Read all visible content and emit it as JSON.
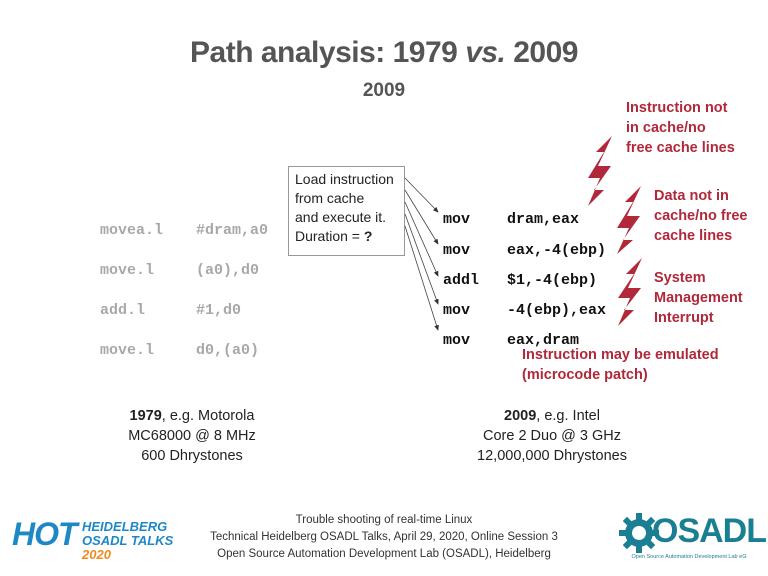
{
  "slide": {
    "title_main": "Path analysis: 1979 ",
    "title_vs": "vs.",
    "title_end": " 2009",
    "subtitle": "2009"
  },
  "code_1979": [
    {
      "op": "movea.l",
      "args": "#dram,a0"
    },
    {
      "op": "move.l",
      "args": "(a0),d0"
    },
    {
      "op": "add.l",
      "args": "#1,d0"
    },
    {
      "op": "move.l",
      "args": "d0,(a0)"
    }
  ],
  "code_2009": [
    {
      "op": "mov",
      "args": "dram,eax"
    },
    {
      "op": "mov",
      "args": "eax,-4(ebp)"
    },
    {
      "op": "addl",
      "args": "$1,-4(ebp)"
    },
    {
      "op": "mov",
      "args": "-4(ebp),eax"
    },
    {
      "op": "mov",
      "args": "eax,dram"
    }
  ],
  "callout": {
    "line1": "Load instruction",
    "line2": "from cache",
    "line3": "and execute it.",
    "line4_prefix": "Duration = ",
    "line4_value": "?"
  },
  "events": {
    "e1": [
      "Instruction not",
      "in cache/no",
      "free cache lines"
    ],
    "e2": [
      "Data not in",
      "cache/no free",
      "cache lines"
    ],
    "e3": [
      "System",
      "Management",
      "Interrupt"
    ],
    "e4": [
      "Instruction may be emulated",
      "(microcode patch)"
    ]
  },
  "desc_1979": {
    "year": "1979",
    "rest": ", e.g. Motorola",
    "line2": "MC68000 @ 8 MHz",
    "line3": "600 Dhrystones"
  },
  "desc_2009": {
    "year": "2009",
    "rest": ", e.g. Intel",
    "line2": "Core 2 Duo @ 3 GHz",
    "line3": "12,000,000 Dhrystones"
  },
  "footer": {
    "line1": "Trouble shooting of real-time Linux",
    "line2": "Technical Heidelberg OSADL Talks, April 29, 2020, Online Session 3",
    "line3": "Open Source Automation Development Lab (OSADL), Heidelberg"
  },
  "logos": {
    "hot_big": "HOT",
    "hot_l1": "HEIDELBERG",
    "hot_l2a": "OSADL TALKS",
    "hot_l2b": "2020",
    "osadl": "OSADL",
    "osadl_sub": "Open Source Automation Development Lab eG"
  },
  "colors": {
    "accent_red": "#b1283a",
    "hot_blue": "#1e88c7",
    "hot_orange": "#f08a1c",
    "osadl_teal": "#1b7f94"
  }
}
